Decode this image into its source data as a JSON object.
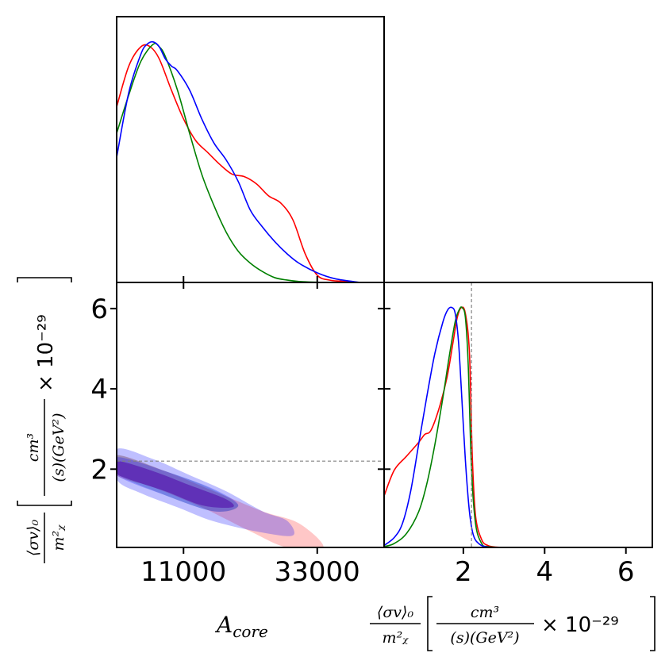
{
  "chart_data": {
    "type": "corner_plot",
    "colors": {
      "red": "#ff0000",
      "green": "#008000",
      "blue": "#0000ff",
      "reference": "#808080"
    },
    "parameters": {
      "A_core": {
        "label_main": "A",
        "label_sub": "core",
        "range": [
          0,
          44000
        ],
        "ticks": [
          11000,
          33000
        ],
        "tick_labels": [
          "11000",
          "33000"
        ]
      },
      "sigma_v": {
        "label_frac_top": "⟨σv⟩₀",
        "label_frac_bottom": "m²ᵪ",
        "label_unit_top": "cm³",
        "label_unit_bottom": "(s)(GeV²)",
        "label_scale": "× 10⁻²⁹",
        "range": [
          0.05,
          6.65
        ],
        "ticks": [
          2,
          4,
          6
        ],
        "tick_labels": [
          "2",
          "4",
          "6"
        ],
        "reference_value": 2.2
      }
    },
    "marginal_A_core": {
      "series": [
        {
          "name": "red",
          "color": "#ff0000",
          "x": [
            0,
            2000,
            4000,
            5500,
            7000,
            9000,
            11000,
            13000,
            15000,
            17000,
            19000,
            21000,
            23000,
            25000,
            27000,
            29000,
            31000,
            33000,
            35000,
            37000,
            40000
          ],
          "y": [
            0.73,
            0.9,
            0.98,
            0.98,
            0.93,
            0.8,
            0.68,
            0.59,
            0.54,
            0.49,
            0.45,
            0.44,
            0.41,
            0.36,
            0.33,
            0.26,
            0.12,
            0.03,
            0.01,
            0.005,
            0
          ]
        },
        {
          "name": "green",
          "color": "#008000",
          "x": [
            0,
            2000,
            4000,
            6000,
            7000,
            8000,
            10000,
            12000,
            14000,
            16000,
            18000,
            20000,
            22000,
            24000,
            26000,
            28000,
            30000,
            33000,
            36000
          ],
          "y": [
            0.62,
            0.78,
            0.92,
            0.99,
            0.98,
            0.94,
            0.8,
            0.62,
            0.45,
            0.32,
            0.21,
            0.13,
            0.08,
            0.045,
            0.02,
            0.01,
            0.004,
            0.001,
            0
          ]
        },
        {
          "name": "blue",
          "color": "#0000ff",
          "x": [
            0,
            2000,
            4000,
            5000,
            6000,
            7000,
            8000,
            9000,
            10000,
            12000,
            14000,
            16000,
            18000,
            20000,
            22000,
            24000,
            26000,
            28000,
            30000,
            33000,
            36000,
            40000
          ],
          "y": [
            0.52,
            0.79,
            0.95,
            0.99,
            1.0,
            0.98,
            0.93,
            0.9,
            0.88,
            0.8,
            0.68,
            0.58,
            0.51,
            0.42,
            0.3,
            0.23,
            0.17,
            0.12,
            0.08,
            0.04,
            0.015,
            0
          ]
        }
      ]
    },
    "marginal_sigma_v": {
      "series": [
        {
          "name": "red",
          "color": "#ff0000",
          "x": [
            0.05,
            0.3,
            0.6,
            0.9,
            1.05,
            1.2,
            1.4,
            1.6,
            1.75,
            1.85,
            1.95,
            2.05,
            2.15,
            2.22,
            2.3,
            2.45,
            2.6,
            2.8,
            3.2
          ],
          "y": [
            1.3,
            1.95,
            2.3,
            2.65,
            2.85,
            2.95,
            3.5,
            4.3,
            5.2,
            5.8,
            6.05,
            5.9,
            4.9,
            2.3,
            0.8,
            0.2,
            0.05,
            0.01,
            0
          ]
        },
        {
          "name": "green",
          "color": "#008000",
          "x": [
            0.05,
            0.3,
            0.6,
            0.9,
            1.1,
            1.3,
            1.5,
            1.65,
            1.8,
            1.9,
            1.97,
            2.05,
            2.12,
            2.2,
            2.3,
            2.45,
            2.6,
            3.0
          ],
          "y": [
            0.02,
            0.1,
            0.35,
            0.9,
            1.6,
            2.6,
            3.8,
            4.8,
            5.7,
            6.0,
            6.05,
            5.8,
            4.6,
            2.0,
            0.6,
            0.1,
            0.02,
            0
          ]
        },
        {
          "name": "blue",
          "color": "#0000ff",
          "x": [
            0.05,
            0.3,
            0.5,
            0.7,
            0.9,
            1.1,
            1.3,
            1.5,
            1.62,
            1.72,
            1.8,
            1.88,
            1.95,
            2.05,
            2.15,
            2.25,
            2.4,
            2.6,
            3.0
          ],
          "y": [
            0.05,
            0.25,
            0.6,
            1.4,
            2.6,
            3.8,
            4.9,
            5.7,
            6.0,
            6.05,
            5.9,
            5.2,
            4.0,
            2.2,
            0.9,
            0.3,
            0.08,
            0.01,
            0
          ]
        }
      ]
    },
    "joint_contours": [
      {
        "name": "red-outer",
        "color": "#ff0000",
        "opacity": 0.22,
        "points": [
          [
            0,
            2.35
          ],
          [
            8000,
            1.95
          ],
          [
            16000,
            1.45
          ],
          [
            24000,
            0.95
          ],
          [
            30000,
            0.65
          ],
          [
            34000,
            0.05
          ],
          [
            28000,
            0.05
          ],
          [
            22000,
            0.45
          ],
          [
            14000,
            1.05
          ],
          [
            6000,
            1.55
          ],
          [
            0,
            1.85
          ]
        ]
      },
      {
        "name": "green-outer",
        "color": "#008000",
        "opacity": 0.18,
        "points": [
          [
            0,
            2.35
          ],
          [
            8000,
            1.95
          ],
          [
            15000,
            1.55
          ],
          [
            20000,
            1.1
          ],
          [
            16000,
            0.95
          ],
          [
            8000,
            1.35
          ],
          [
            0,
            1.9
          ]
        ]
      },
      {
        "name": "blue-outer",
        "color": "#0000ff",
        "opacity": 0.25,
        "points": [
          [
            0,
            2.5
          ],
          [
            6000,
            2.25
          ],
          [
            12000,
            1.85
          ],
          [
            18000,
            1.45
          ],
          [
            24000,
            0.95
          ],
          [
            28000,
            0.72
          ],
          [
            29000,
            0.35
          ],
          [
            24000,
            0.42
          ],
          [
            16000,
            0.7
          ],
          [
            10000,
            1.05
          ],
          [
            4000,
            1.4
          ],
          [
            0,
            1.75
          ]
        ]
      },
      {
        "name": "blue-mid",
        "color": "#0000ff",
        "opacity": 0.25,
        "points": [
          [
            0,
            2.3
          ],
          [
            8000,
            1.95
          ],
          [
            16000,
            1.5
          ],
          [
            20000,
            1.1
          ],
          [
            16000,
            0.95
          ],
          [
            8000,
            1.35
          ],
          [
            0,
            1.85
          ]
        ]
      },
      {
        "name": "purple-core",
        "color": "#5a1fb0",
        "opacity": 0.75,
        "points": [
          [
            0,
            2.2
          ],
          [
            6000,
            1.95
          ],
          [
            12000,
            1.6
          ],
          [
            18000,
            1.25
          ],
          [
            19000,
            1.05
          ],
          [
            14000,
            1.1
          ],
          [
            8000,
            1.45
          ],
          [
            2000,
            1.75
          ],
          [
            0,
            1.9
          ]
        ]
      }
    ]
  }
}
